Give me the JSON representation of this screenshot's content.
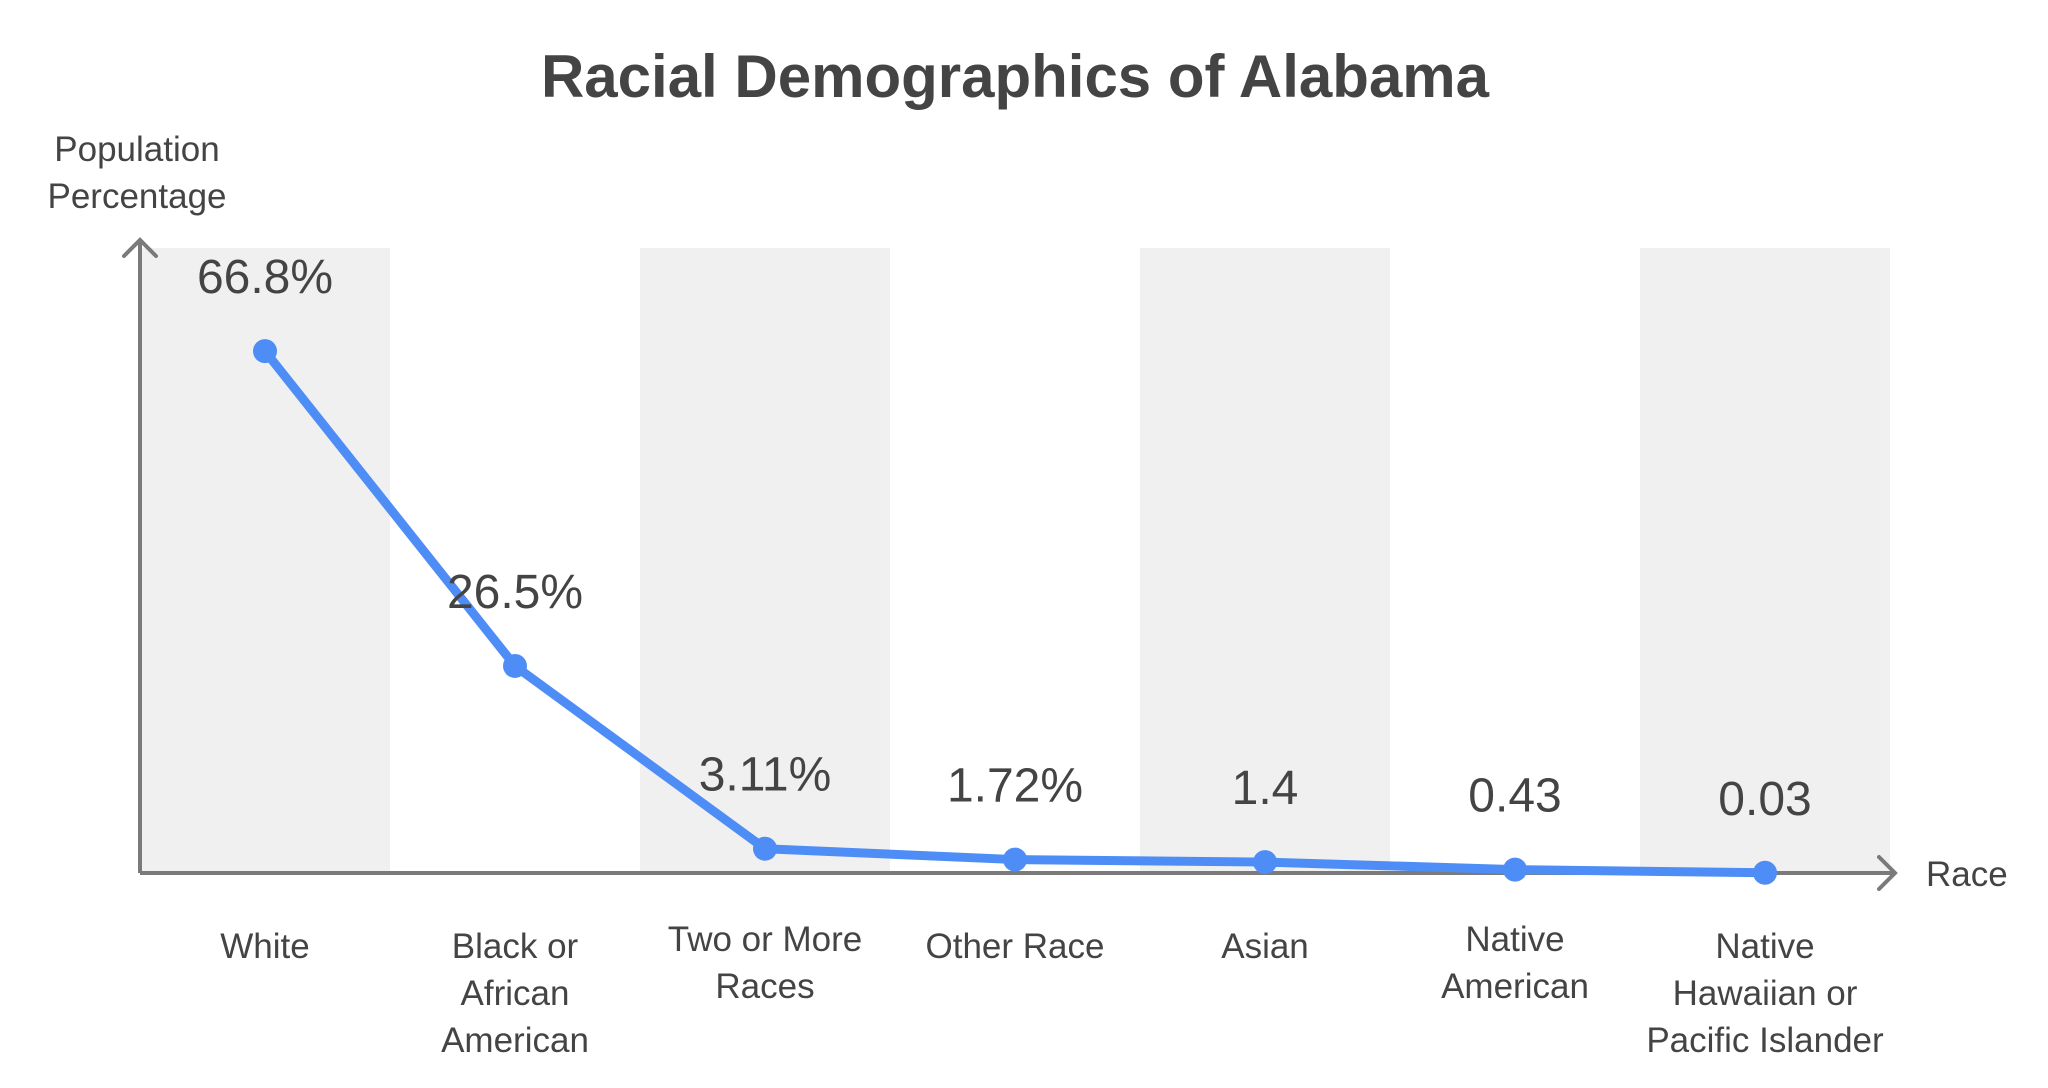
{
  "chart_data": {
    "type": "line",
    "title": "Racial Demographics of Alabama",
    "xlabel": "Race",
    "ylabel": [
      "Population",
      "Percentage"
    ],
    "categories": [
      [
        "White"
      ],
      [
        "Black or",
        "African",
        "American"
      ],
      [
        "Two or More",
        "Races"
      ],
      [
        "Other Race"
      ],
      [
        "Asian"
      ],
      [
        "Native",
        "American"
      ],
      [
        "Native",
        "Hawaiian or",
        "Pacific Islander"
      ]
    ],
    "values": [
      66.8,
      26.5,
      3.11,
      1.72,
      1.4,
      0.43,
      0.03
    ],
    "value_labels": [
      "66.8%",
      "26.5%",
      "3.11%",
      "1.72%",
      "1.4",
      "0.43",
      "0.03"
    ],
    "ylim": [
      0,
      80
    ],
    "grid": false,
    "legend": "none",
    "colors": {
      "line": "#4e8df5",
      "band": "#f0f0f0",
      "axis": "#7a7a7a",
      "text": "#444444"
    }
  }
}
